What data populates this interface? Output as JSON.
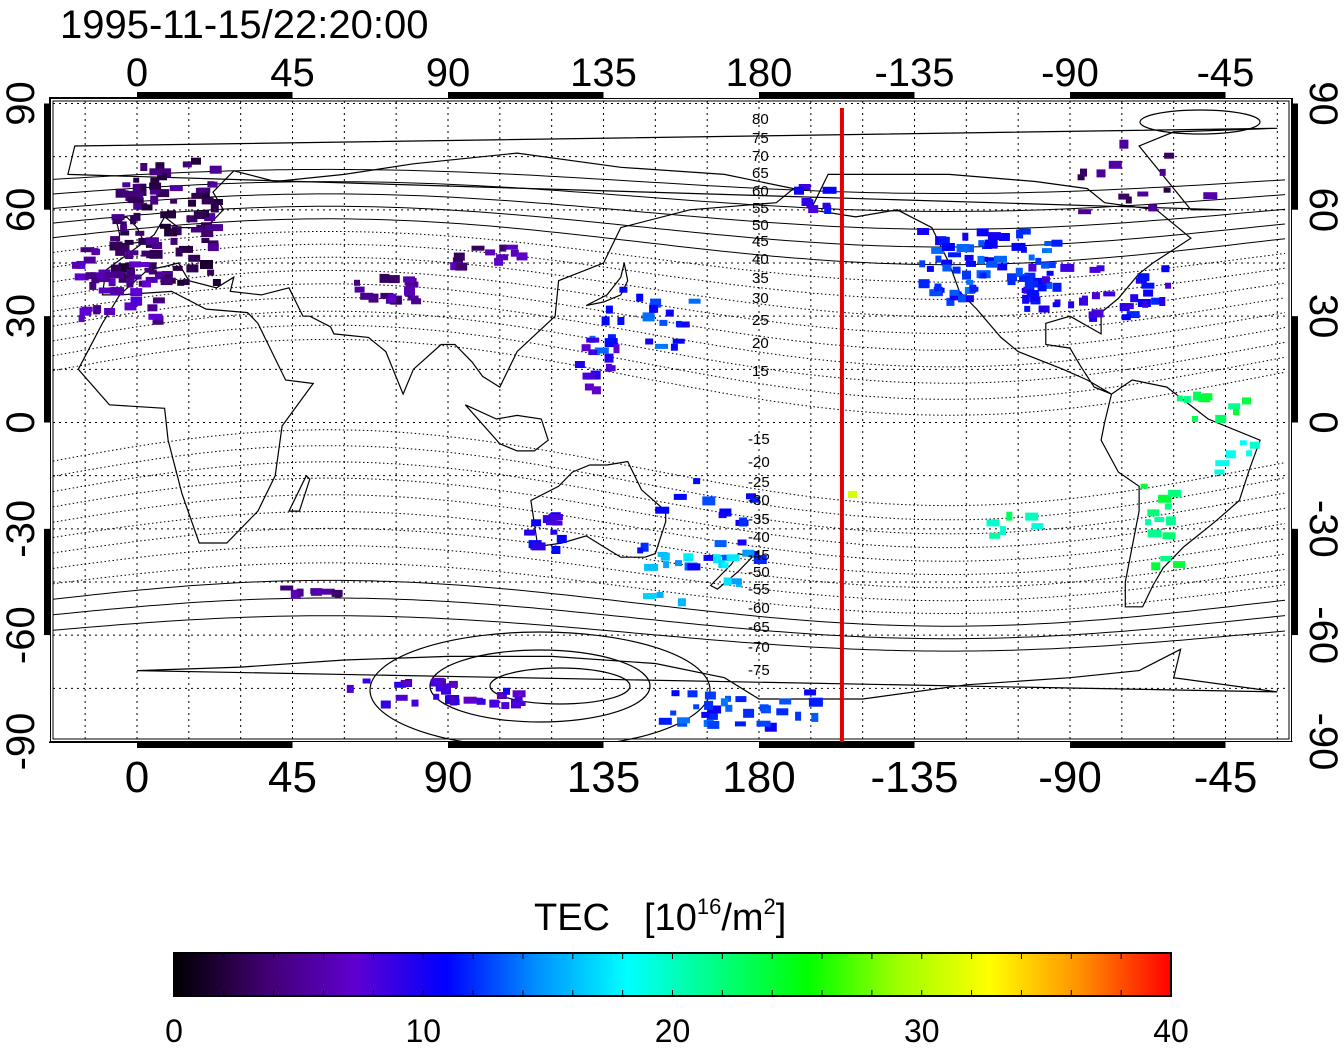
{
  "title": "1995-11-15/22:20:00",
  "map": {
    "lon_ticks": [
      "0",
      "45",
      "90",
      "135",
      "180",
      "-135",
      "-90",
      "-45"
    ],
    "lat_ticks_left": [
      "90",
      "60",
      "30",
      "0",
      "-30",
      "-60",
      "-90"
    ],
    "lat_ticks_right": [
      "90",
      "60",
      "30",
      "0",
      "-30",
      "-60",
      "-90"
    ],
    "contour_labels_north": [
      "80",
      "75",
      "70",
      "65",
      "60",
      "55",
      "50",
      "45",
      "40",
      "35",
      "30",
      "25",
      "20",
      "15"
    ],
    "contour_labels_south": [
      "-15",
      "-20",
      "-25",
      "-30",
      "-35",
      "-40",
      "-45",
      "-50",
      "-55",
      "-60",
      "-65",
      "-70",
      "-75"
    ],
    "marker_line_color": "#e00000",
    "marker_longitude": -156
  },
  "colorbar": {
    "label_main": "TEC",
    "label_unit_prefix": "[10",
    "label_unit_exp1": "16",
    "label_unit_mid": "/m",
    "label_unit_exp2": "2",
    "label_unit_suffix": "]",
    "ticks": [
      "0",
      "10",
      "20",
      "30",
      "40"
    ],
    "stops": [
      "#000000",
      "#400070",
      "#6000d0",
      "#0000ff",
      "#0090ff",
      "#00ffff",
      "#00ff80",
      "#00ff00",
      "#a0ff00",
      "#ffff00",
      "#ff9000",
      "#ff0000"
    ]
  },
  "chart_data": {
    "type": "heatmap",
    "title": "1995-11-15/22:20:00",
    "colorbar_label": "TEC [10^16/m^2]",
    "value_range": [
      0,
      40
    ],
    "grid": true,
    "clusters": [
      {
        "lon": 8,
        "lat": 55,
        "tec": 4
      },
      {
        "lon": -120,
        "lat": 40,
        "tec": 12
      },
      {
        "lon": -100,
        "lat": 38,
        "tec": 10
      },
      {
        "lon": -60,
        "lat": 5,
        "tec": 22
      },
      {
        "lon": -65,
        "lat": -28,
        "tec": 20
      },
      {
        "lon": -110,
        "lat": -30,
        "tec": 20
      },
      {
        "lon": 120,
        "lat": -30,
        "tec": 9
      },
      {
        "lon": 140,
        "lat": 25,
        "tec": 12
      },
      {
        "lon": 175,
        "lat": -40,
        "tec": 16
      },
      {
        "lon": 140,
        "lat": -80,
        "tec": 10
      }
    ]
  }
}
